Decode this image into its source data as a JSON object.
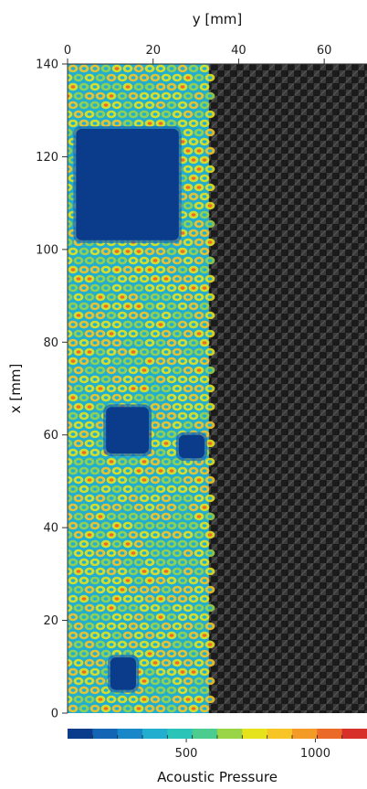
{
  "chart_data": {
    "type": "heatmap",
    "title": "",
    "xlabel": "y [mm]",
    "ylabel": "x [mm]",
    "xlim": [
      0,
      70
    ],
    "ylim": [
      0,
      140
    ],
    "x_ticks": [
      "0",
      "20",
      "40",
      "60"
    ],
    "x_tick_values": [
      0,
      20,
      40,
      60
    ],
    "y_ticks": [
      "0",
      "20",
      "40",
      "60",
      "80",
      "100",
      "120",
      "140"
    ],
    "y_tick_values": [
      0,
      20,
      40,
      60,
      80,
      100,
      120,
      140
    ],
    "scan_region_y_mm": [
      0,
      33
    ],
    "background_region_y_mm": [
      33,
      70
    ],
    "background_description": "carbon fiber weave",
    "low_pressure_regions": [
      {
        "name": "large square defect",
        "y_range": [
          2,
          26
        ],
        "x_range": [
          102,
          126
        ]
      },
      {
        "name": "small defect",
        "y_range": [
          9,
          19
        ],
        "x_range": [
          56,
          66
        ]
      },
      {
        "name": "faint defect",
        "y_range": [
          26,
          32
        ],
        "x_range": [
          55,
          60
        ]
      },
      {
        "name": "faint defect bottom",
        "y_range": [
          10,
          16
        ],
        "x_range": [
          5,
          12
        ]
      }
    ],
    "colorbar": {
      "label": "Acoustic Pressure",
      "range": [
        40,
        1200
      ],
      "tick_values": [
        500,
        1000
      ],
      "tick_labels": [
        "500",
        "1000"
      ],
      "colors": [
        "#0b3c8c",
        "#1565b5",
        "#1a87c9",
        "#22aecf",
        "#2bc4b8",
        "#4ccc8e",
        "#9ad447",
        "#e6e31c",
        "#f7c525",
        "#f39a27",
        "#ec6a28",
        "#d7302a"
      ]
    }
  }
}
